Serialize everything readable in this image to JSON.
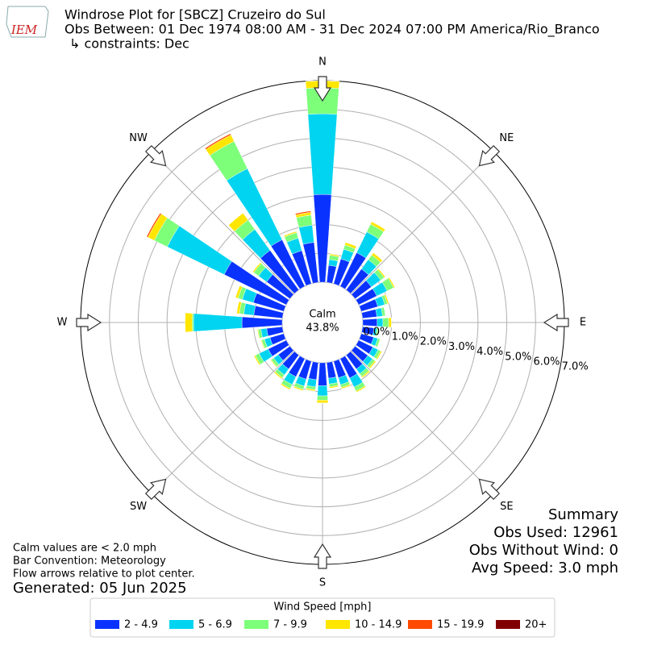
{
  "header": {
    "title": "Windrose Plot for [SBCZ] Cruzeiro do Sul",
    "subtitle": "Obs Between: 01 Dec 1974 08:00 AM - 31 Dec 2024 07:00 PM America/Rio_Branco",
    "constraints": "↳ constraints: Dec",
    "logo": "IEM"
  },
  "chart_data": {
    "type": "windrose",
    "directions": [
      "N",
      "NE",
      "E",
      "SE",
      "S",
      "SW",
      "W",
      "NW"
    ],
    "rlim": [
      0,
      7
    ],
    "rticks": [
      {
        "value": 0,
        "label": "0.0%"
      },
      {
        "value": 1,
        "label": "1.0%"
      },
      {
        "value": 2,
        "label": "2.0%"
      },
      {
        "value": 3,
        "label": "3.0%"
      },
      {
        "value": 4,
        "label": "4.0%"
      },
      {
        "value": 5,
        "label": "5.0%"
      },
      {
        "value": 6,
        "label": "6.0%"
      },
      {
        "value": 7,
        "label": "7.0%"
      }
    ],
    "grid": true,
    "calm_label": "Calm",
    "calm": {
      "value": 43.8,
      "label": "43.8%"
    },
    "legend_title": "Wind Speed [mph]",
    "series": [
      {
        "name": "2 - 4.9",
        "color": "#0a32ff",
        "values": [
          3.05,
          0.6,
          0.9,
          1.3,
          0.9,
          0.7,
          0.7,
          0.6,
          0.5,
          0.5,
          0.4,
          0.45,
          0.55,
          0.55,
          0.6,
          0.75,
          0.6,
          0.55,
          0.8,
          0.6,
          0.65,
          0.7,
          0.6,
          0.5,
          0.7,
          0.5,
          0.55,
          1.4,
          1.0,
          1.1,
          2.4,
          1.0,
          1.7,
          1.8,
          1.2,
          1.4
        ]
      },
      {
        "name": "5 - 6.9",
        "color": "#00d4f0",
        "values": [
          2.8,
          0.2,
          0.35,
          0.8,
          0.4,
          0.4,
          0.4,
          0.25,
          0.2,
          0.2,
          0.1,
          0.15,
          0.2,
          0.2,
          0.2,
          0.35,
          0.25,
          0.2,
          0.35,
          0.25,
          0.25,
          0.3,
          0.25,
          0.2,
          0.35,
          0.2,
          0.2,
          1.68,
          0.35,
          0.4,
          2.2,
          0.35,
          0.9,
          2.75,
          0.45,
          0.6
        ]
      },
      {
        "name": "7 - 9.9",
        "color": "#7dff7a",
        "values": [
          0.9,
          0.15,
          0.15,
          0.3,
          0.2,
          0.15,
          0.25,
          0.1,
          0.1,
          0.2,
          0.05,
          0.08,
          0.1,
          0.1,
          0.12,
          0.15,
          0.1,
          0.1,
          0.15,
          0.1,
          0.12,
          0.15,
          0.12,
          0.1,
          0.15,
          0.1,
          0.1,
          0.05,
          0.15,
          0.15,
          0.5,
          0.2,
          0.4,
          1.05,
          0.2,
          0.35
        ]
      },
      {
        "name": "10 - 14.9",
        "color": "#ffe600",
        "values": [
          0.25,
          0.05,
          0.1,
          0.1,
          0.1,
          0.05,
          0.05,
          0.05,
          0,
          0.1,
          0.02,
          0.02,
          0.05,
          0.05,
          0.05,
          0.05,
          0.05,
          0.05,
          0.1,
          0.05,
          0.05,
          0.05,
          0.05,
          0.03,
          0.05,
          0.03,
          0.03,
          0.25,
          0.1,
          0.1,
          0.25,
          0.05,
          0.3,
          0.25,
          0.05,
          0.1
        ]
      },
      {
        "name": "15 - 19.9",
        "color": "#ff4a00",
        "values": [
          0,
          0,
          0,
          0,
          0,
          0,
          0,
          0,
          0,
          0,
          0,
          0,
          0,
          0,
          0,
          0,
          0,
          0,
          0,
          0,
          0,
          0,
          0,
          0,
          0,
          0,
          0,
          0,
          0,
          0,
          0.05,
          0,
          0,
          0.05,
          0,
          0.05
        ]
      },
      {
        "name": "20+",
        "color": "#800000",
        "values": [
          0,
          0,
          0,
          0,
          0,
          0,
          0,
          0,
          0,
          0,
          0,
          0,
          0,
          0,
          0,
          0,
          0,
          0,
          0,
          0,
          0,
          0,
          0,
          0,
          0,
          0,
          0,
          0,
          0,
          0,
          0,
          0,
          0,
          0,
          0,
          0
        ]
      }
    ]
  },
  "notes": [
    "Calm values are < 2.0 mph",
    "Bar Convention: Meteorology",
    "Flow arrows relative to plot center."
  ],
  "generated": "Generated: 05 Jun 2025",
  "summary": [
    "Summary",
    "Obs Used: 12961",
    "Obs Without Wind: 0",
    "Avg Speed: 3.0 mph"
  ]
}
